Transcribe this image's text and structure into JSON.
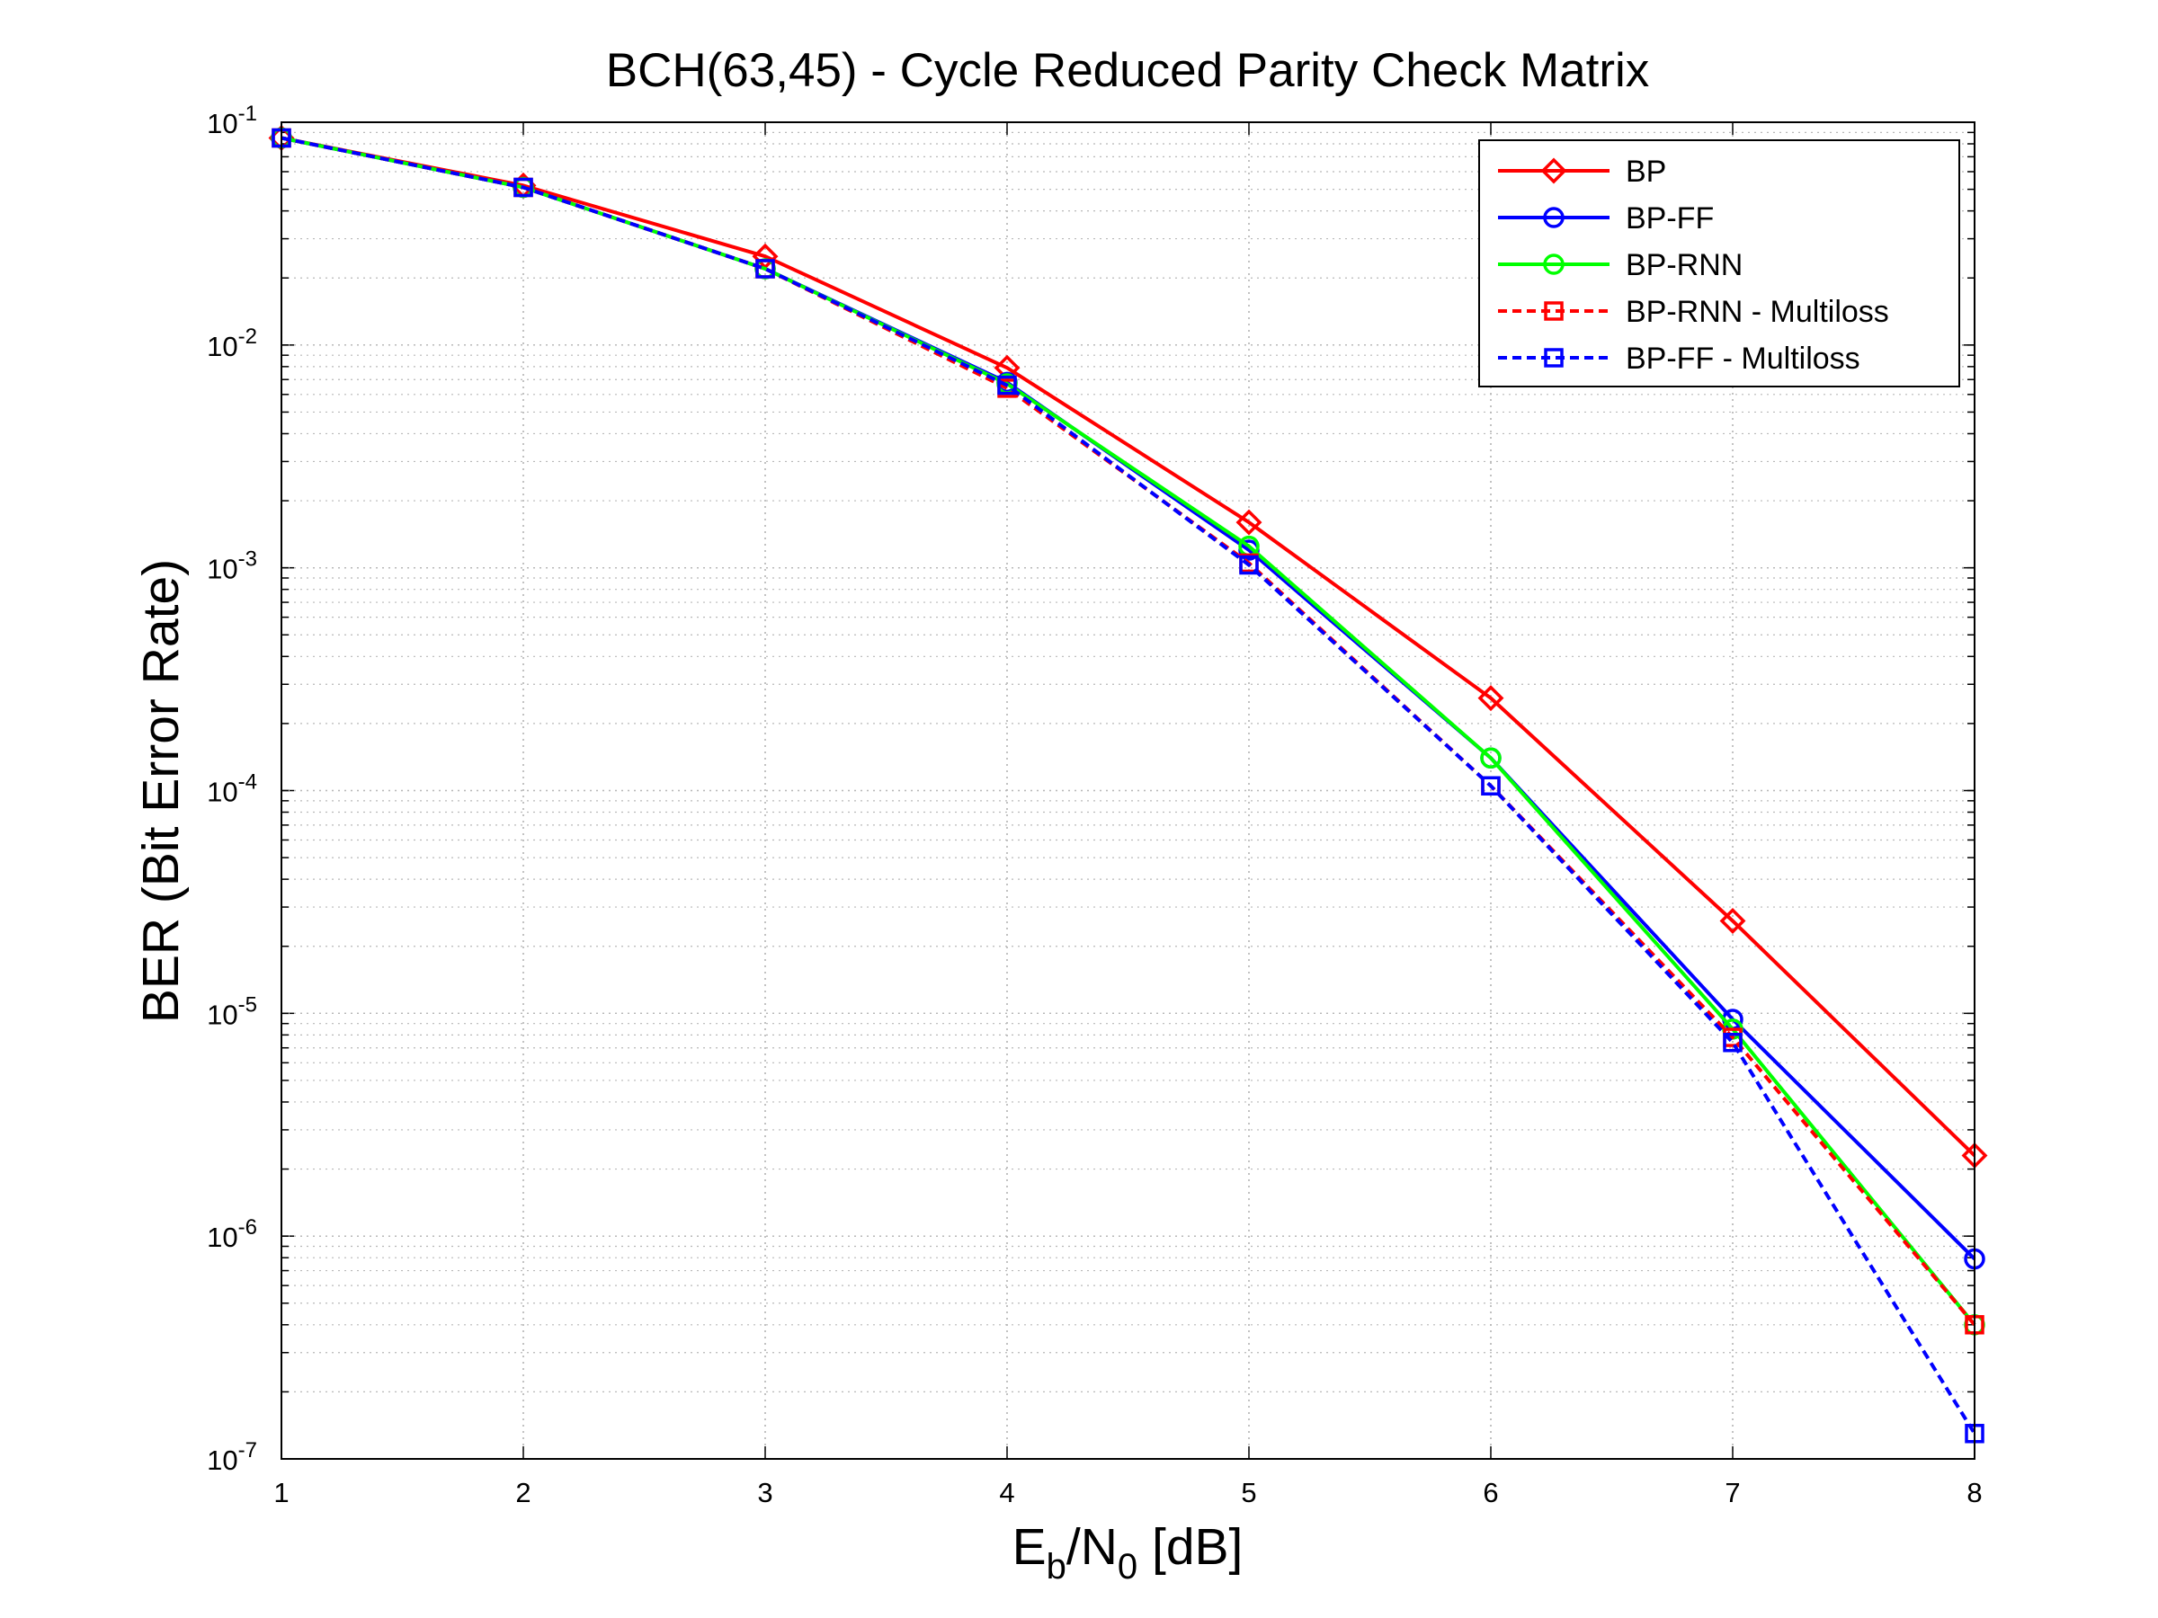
{
  "chart_data": {
    "type": "line",
    "title": "BCH(63,45) - Cycle Reduced Parity Check Matrix",
    "xlabel": {
      "main": "E",
      "sub1": "b",
      "mid": "/N",
      "sub2": "0",
      "tail": " [dB]"
    },
    "ylabel": "BER (Bit Error Rate)",
    "xlim": [
      1,
      8
    ],
    "ylim": [
      1e-07,
      0.1
    ],
    "yscale": "log",
    "grid": true,
    "legend_position": "top-right",
    "x_ticks": [
      "1",
      "2",
      "3",
      "4",
      "5",
      "6",
      "7",
      "8"
    ],
    "y_ticks": [
      {
        "base": "10",
        "exp": "-1"
      },
      {
        "base": "10",
        "exp": "-2"
      },
      {
        "base": "10",
        "exp": "-3"
      },
      {
        "base": "10",
        "exp": "-4"
      },
      {
        "base": "10",
        "exp": "-5"
      },
      {
        "base": "10",
        "exp": "-6"
      },
      {
        "base": "10",
        "exp": "-7"
      }
    ],
    "x": [
      1,
      2,
      3,
      4,
      5,
      6,
      7,
      8
    ],
    "series": [
      {
        "name": "BP",
        "color": "#ff0000",
        "marker": "diamond",
        "dashed": false,
        "values": [
          0.085,
          0.052,
          0.025,
          0.0079,
          0.0016,
          0.00026,
          2.6e-05,
          2.3e-06
        ]
      },
      {
        "name": "BP-FF",
        "color": "#0000ff",
        "marker": "circle",
        "dashed": false,
        "values": [
          0.085,
          0.051,
          0.022,
          0.0068,
          0.0012,
          0.00014,
          9.4e-06,
          7.9e-07
        ]
      },
      {
        "name": "BP-RNN",
        "color": "#00ff00",
        "marker": "circle",
        "dashed": false,
        "values": [
          0.085,
          0.051,
          0.022,
          0.0067,
          0.00125,
          0.00014,
          8.5e-06,
          4e-07
        ]
      },
      {
        "name": "BP-RNN - Multiloss",
        "color": "#ff0000",
        "marker": "square",
        "dashed": true,
        "values": [
          0.085,
          0.051,
          0.022,
          0.0064,
          0.00105,
          0.000105,
          7.8e-06,
          4e-07
        ]
      },
      {
        "name": "BP-FF - Multiloss",
        "color": "#0000ff",
        "marker": "square",
        "dashed": true,
        "values": [
          0.085,
          0.051,
          0.022,
          0.0066,
          0.00103,
          0.000105,
          7.4e-06,
          1.3e-07
        ]
      }
    ]
  }
}
